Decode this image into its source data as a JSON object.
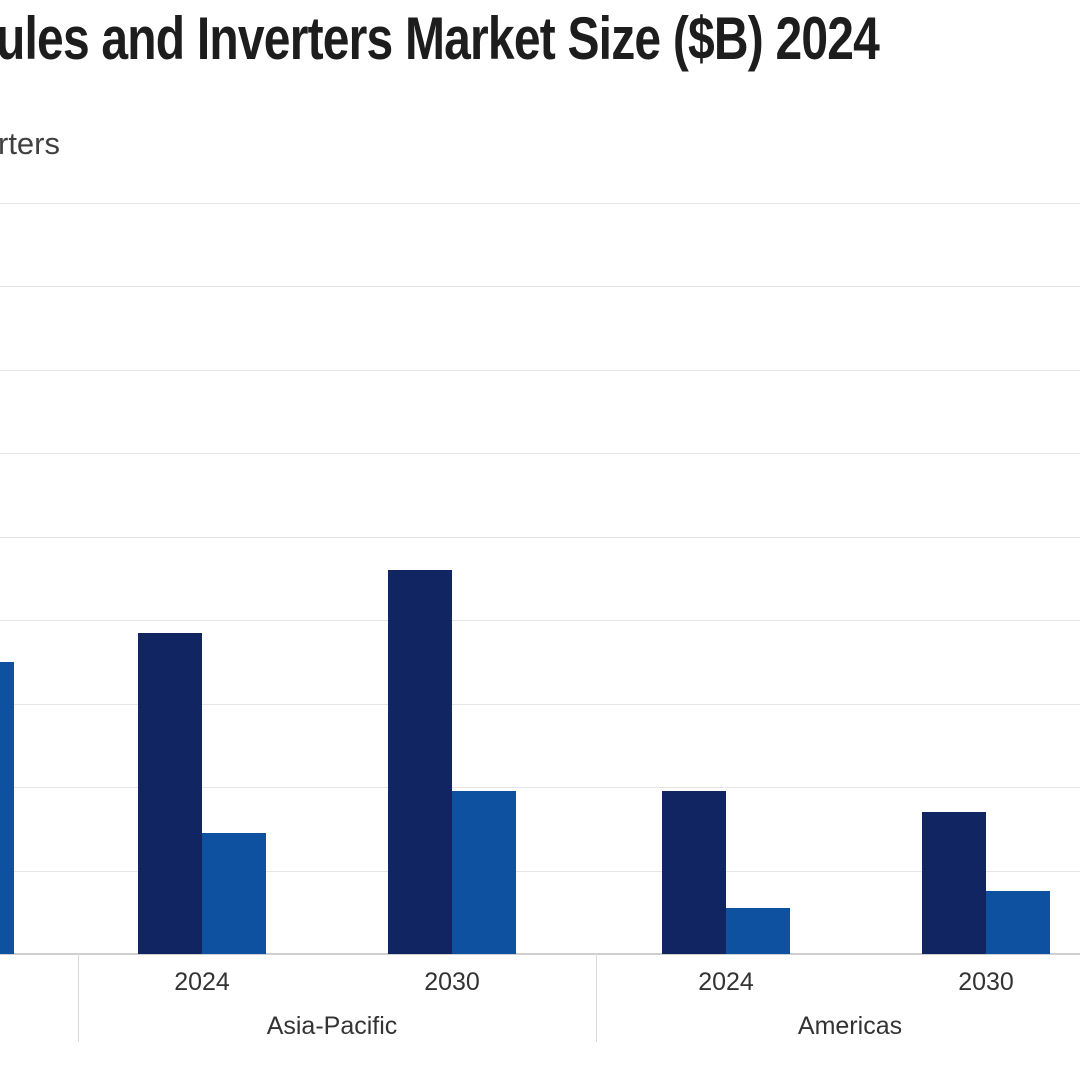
{
  "title": {
    "visible_text": "ules and Inverters Market Size ($B) 2024",
    "color": "#1d1d1d"
  },
  "legend": {
    "visible_text": "rters",
    "color": "#404040"
  },
  "chart_data": {
    "type": "bar",
    "title": "ules and Inverters Market Size ($B) 2024",
    "xlabel": "",
    "ylabel": "",
    "ylim": [
      0,
      90
    ],
    "gridline_step": 10,
    "grid": true,
    "legend_position": "top-left",
    "axis_note": "Y-axis tick labels and chart edges are cropped out of frame; values estimated from gridlines assuming a step of 10 per line.",
    "series": [
      {
        "key": "modules",
        "name_in_title": "Modules",
        "color": "#102562"
      },
      {
        "key": "inverters",
        "name_in_title": "Inverters",
        "legend_visible_fragment": "rters",
        "color": "#0F51A1"
      }
    ],
    "regions": [
      {
        "label": "Asia-Pacific",
        "groups": [
          {
            "label": "2024",
            "modules": 38.5,
            "inverters": 14.5
          },
          {
            "label": "2030",
            "modules": 46,
            "inverters": 19.5
          }
        ]
      },
      {
        "label": "Americas",
        "groups": [
          {
            "label": "2024",
            "modules": 19.5,
            "inverters": 5.5
          },
          {
            "label": "2030",
            "modules": 17,
            "inverters": 7.5
          }
        ]
      }
    ],
    "cropped_left_bar": {
      "series": "inverters",
      "value": 35,
      "note": "right edge of an inverters bar from a group cropped off the left side of the frame"
    }
  }
}
